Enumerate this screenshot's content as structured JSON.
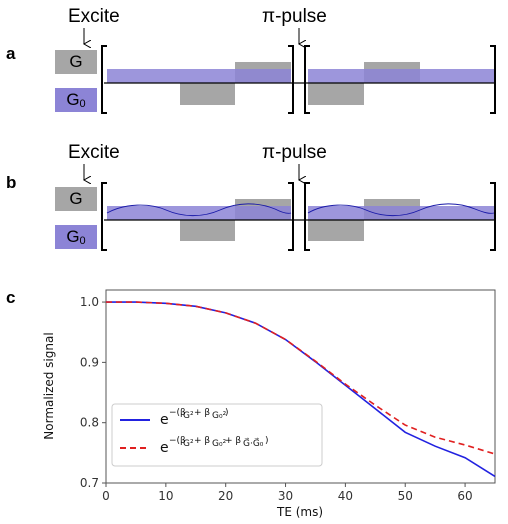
{
  "panels": {
    "a": {
      "letter": "a",
      "excite": "Excite",
      "pulse": "π-pulse",
      "g": "G",
      "g0": "G",
      "g0_sub": "0"
    },
    "b": {
      "letter": "b",
      "excite": "Excite",
      "pulse": "π-pulse",
      "g": "G",
      "g0": "G",
      "g0_sub": "0"
    },
    "c": {
      "letter": "c"
    }
  },
  "colors": {
    "gradient_gray": "#a6a6a6",
    "background_gradient": "#8c84d6",
    "series_blue": "#2222e0",
    "series_red": "#e02020"
  },
  "chart_data": {
    "type": "line",
    "xlabel": "TE (ms)",
    "ylabel": "Normalized signal",
    "xlim": [
      0,
      65
    ],
    "ylim": [
      0.7,
      1.02
    ],
    "xticks": [
      0,
      10,
      20,
      30,
      40,
      50,
      60
    ],
    "yticks": [
      0.7,
      0.8,
      0.9,
      1.0
    ],
    "ytick_labels": [
      "0.7",
      "0.8",
      "0.9",
      "1.0"
    ],
    "grid": false,
    "legend_position": "bottom-left",
    "series": [
      {
        "legend": "e^−(β_G² + β_G0²)",
        "style": "solid",
        "color": "#2222e0",
        "x": [
          0,
          5,
          10,
          15,
          20,
          25,
          30,
          35,
          40,
          45,
          50,
          55,
          60,
          65
        ],
        "y": [
          1.0,
          1.0,
          0.998,
          0.993,
          0.982,
          0.965,
          0.938,
          0.901,
          0.862,
          0.823,
          0.784,
          0.761,
          0.742,
          0.711
        ]
      },
      {
        "legend": "e^−(β_G² + β_G0² + β_G·G0)",
        "style": "dashed",
        "color": "#e02020",
        "x": [
          0,
          5,
          10,
          15,
          20,
          25,
          30,
          35,
          40,
          45,
          50,
          55,
          60,
          65
        ],
        "y": [
          1.0,
          1.0,
          0.998,
          0.993,
          0.982,
          0.965,
          0.938,
          0.902,
          0.864,
          0.829,
          0.796,
          0.776,
          0.763,
          0.748
        ]
      }
    ]
  }
}
